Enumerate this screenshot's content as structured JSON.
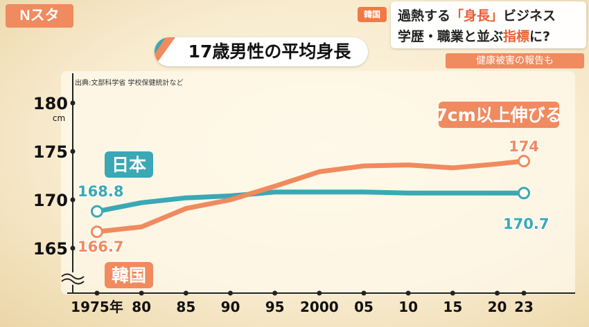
{
  "broadcast": {
    "logo": "Nスタ",
    "country_tag": "韓国",
    "headline_line1_pre": "過熱する",
    "headline_line1_accent": "「身長」",
    "headline_line1_post": "ビジネス",
    "headline_line2_pre": "学歴・職業と並ぶ",
    "headline_line2_accent": "指標",
    "headline_line2_post": "に?",
    "subline": "健康被害の報告も"
  },
  "colors": {
    "japan": "#3aa8b5",
    "korea": "#f08a5f",
    "axis": "#222222"
  },
  "chart_data": {
    "type": "line",
    "title": "17歳男性の平均身長",
    "source": "出典:文部科学省 学校保健統計など",
    "ylabel": "cm",
    "ylim": [
      160,
      183
    ],
    "y_ticks": [
      165,
      170,
      175,
      180
    ],
    "x_tick_labels": [
      "1975年",
      "80",
      "85",
      "90",
      "95",
      "2000",
      "05",
      "10",
      "15",
      "20",
      "23"
    ],
    "x": [
      1975,
      1980,
      1985,
      1990,
      1995,
      2000,
      2005,
      2010,
      2015,
      2020,
      2023
    ],
    "series": [
      {
        "name": "日本",
        "values": [
          168.8,
          169.7,
          170.2,
          170.4,
          170.8,
          170.8,
          170.8,
          170.7,
          170.7,
          170.7,
          170.7
        ],
        "start_label": "168.8",
        "end_label": "170.7"
      },
      {
        "name": "韓国",
        "values": [
          166.7,
          167.2,
          169.1,
          170.0,
          171.4,
          172.9,
          173.5,
          173.6,
          173.3,
          173.7,
          174.0
        ],
        "start_label": "166.7",
        "end_label": "174"
      }
    ],
    "annotation": "7cm以上伸びる"
  }
}
